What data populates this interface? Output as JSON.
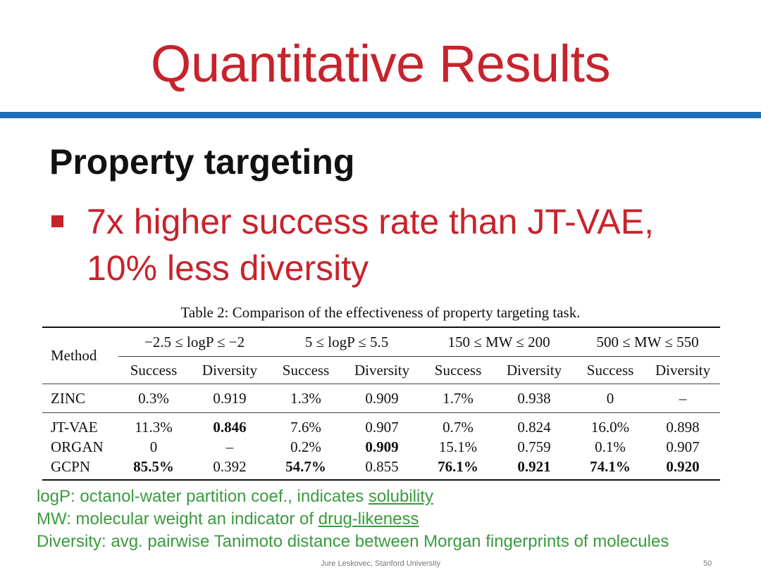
{
  "title": "Quantitative Results",
  "subtitle": "Property targeting",
  "bullet": {
    "line1": "7x higher success rate than JT-VAE,",
    "line2": "10% less diversity"
  },
  "table": {
    "caption": "Table 2: Comparison of the effectiveness of property targeting task.",
    "method_header": "Method",
    "groups": [
      "−2.5 ≤ logP ≤ −2",
      "5 ≤ logP ≤ 5.5",
      "150 ≤ MW ≤ 200",
      "500 ≤ MW ≤ 550"
    ],
    "sub_success": "Success",
    "sub_diversity": "Diversity",
    "rows": [
      {
        "method": "ZINC",
        "cells": [
          "0.3%",
          "0.919",
          "1.3%",
          "0.909",
          "1.7%",
          "0.938",
          "0",
          "–"
        ]
      },
      {
        "method": "JT-VAE",
        "cells": [
          "11.3%",
          "0.846",
          "7.6%",
          "0.907",
          "0.7%",
          "0.824",
          "16.0%",
          "0.898"
        ]
      },
      {
        "method": "ORGAN",
        "cells": [
          "0",
          "–",
          "0.2%",
          "0.909",
          "15.1%",
          "0.759",
          "0.1%",
          "0.907"
        ]
      },
      {
        "method": "GCPN",
        "cells": [
          "85.5%",
          "0.392",
          "54.7%",
          "0.855",
          "76.1%",
          "0.921",
          "74.1%",
          "0.920"
        ]
      }
    ],
    "bold_cells": [
      [
        1,
        1
      ],
      [
        2,
        3
      ],
      [
        3,
        0
      ],
      [
        3,
        2
      ],
      [
        3,
        4
      ],
      [
        3,
        5
      ],
      [
        3,
        6
      ],
      [
        3,
        7
      ]
    ]
  },
  "notes": {
    "logp_term": "logP:",
    "logp_text": " octanol-water partition coef., indicates ",
    "logp_link": "solubility",
    "mw_term": "MW:",
    "mw_text": " molecular weight an indicator of ",
    "mw_link": "drug-likeness",
    "div_term": "Diversity:",
    "div_text": " avg. pairwise Tanimoto distance between Morgan fingerprints of molecules"
  },
  "footer": {
    "author": "Jure Leskovec, Stanford University",
    "page": "50"
  },
  "colors": {
    "title": "#c8232c",
    "rule": "#1f6fb6",
    "notes": "#3a9a3f"
  }
}
